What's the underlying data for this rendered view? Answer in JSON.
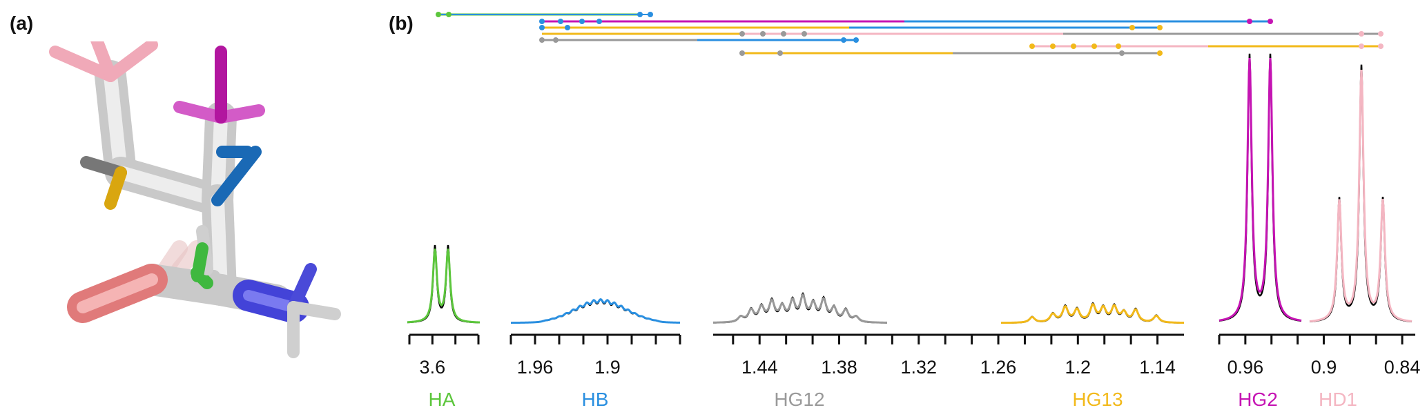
{
  "panels": {
    "a": "(a)",
    "b": "(b)"
  },
  "colors": {
    "HA": "#5cc63c",
    "HB": "#2a8fe0",
    "HG12": "#999999",
    "HG13": "#f2b91a",
    "HG2": "#c514b3",
    "HD1": "#f4b6c2",
    "ref": "#000000"
  },
  "axes": [
    {
      "segment": "HA",
      "ticks": [
        "3.6"
      ]
    },
    {
      "segment": "HB",
      "ticks": [
        "1.96",
        "1.9"
      ]
    },
    {
      "segment": "HG",
      "ticks": [
        "1.44",
        "1.38",
        "1.32",
        "1.26",
        "1.2",
        "1.14"
      ]
    },
    {
      "segment": "HG2_HD1",
      "ticks": [
        "0.96",
        "0.9",
        "0.84"
      ]
    }
  ],
  "peak_labels": [
    "HA",
    "HB",
    "HG12",
    "HG13",
    "HG2",
    "HD1"
  ],
  "molecule": {
    "atom_colors": [
      "HA-green",
      "HB-blue",
      "HG12-gray",
      "HG13-yellow",
      "HG2-magenta",
      "HD1-pink",
      "N-blue",
      "O-red"
    ]
  }
}
